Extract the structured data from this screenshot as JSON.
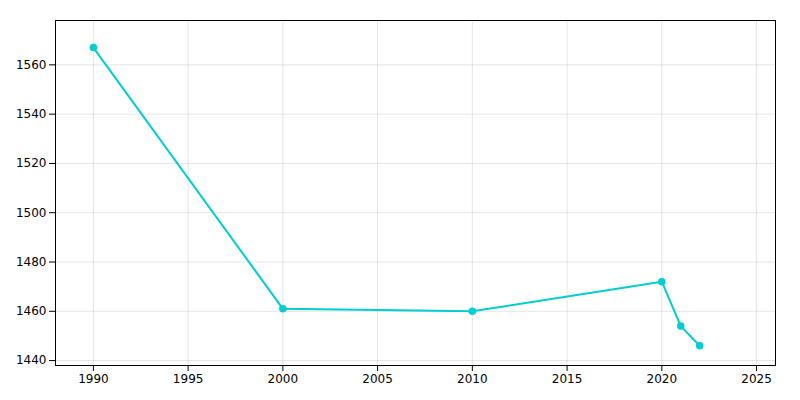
{
  "chart_data": {
    "type": "line",
    "x": [
      1990,
      2000,
      2010,
      2020,
      2021,
      2022
    ],
    "values": [
      1567,
      1461,
      1460,
      1472,
      1454,
      1446
    ],
    "color": "#00CED1",
    "marker": "circle",
    "xlim": [
      1988,
      2026
    ],
    "xticks": [
      1990,
      1995,
      2000,
      2005,
      2010,
      2015,
      2020,
      2025
    ],
    "ylim": [
      1438,
      1578
    ],
    "yticks": [
      1440,
      1460,
      1480,
      1500,
      1520,
      1540,
      1560
    ],
    "grid": true
  }
}
